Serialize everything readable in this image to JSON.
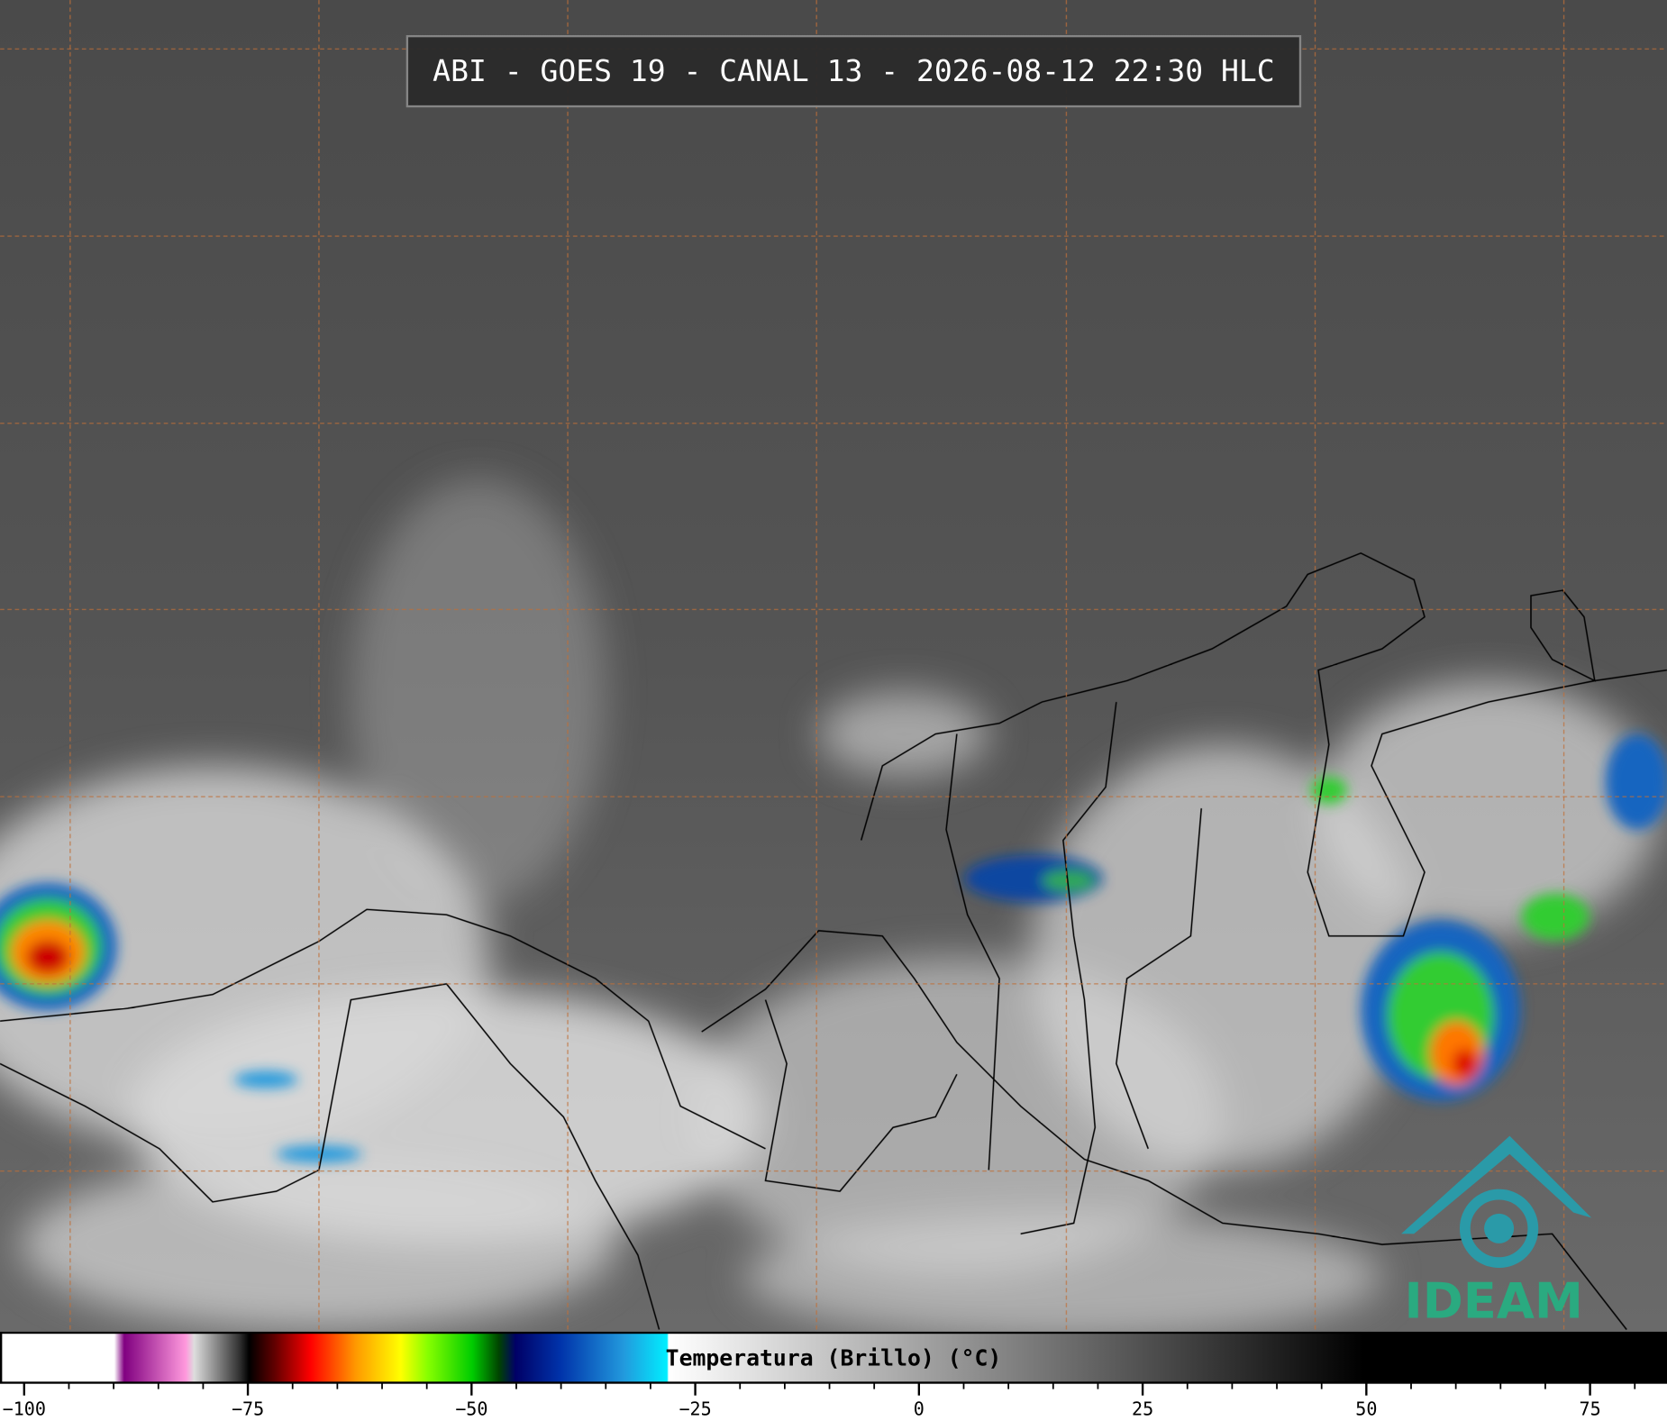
{
  "header": {
    "title": "ABI - GOES 19 - CANAL 13 - 2026-08-12 22:30 HLC"
  },
  "colorbar": {
    "label": "Temperatura (Brillo) (°C)",
    "range": [
      -102.7,
      83.6
    ],
    "ticks": [
      {
        "value": -100,
        "label": "−100"
      },
      {
        "value": -75,
        "label": "−75"
      },
      {
        "value": -50,
        "label": "−50"
      },
      {
        "value": -25,
        "label": "−25"
      },
      0,
      25,
      50,
      75
    ],
    "minor_step": 5
  },
  "logo": {
    "text": "IDEAM"
  }
}
